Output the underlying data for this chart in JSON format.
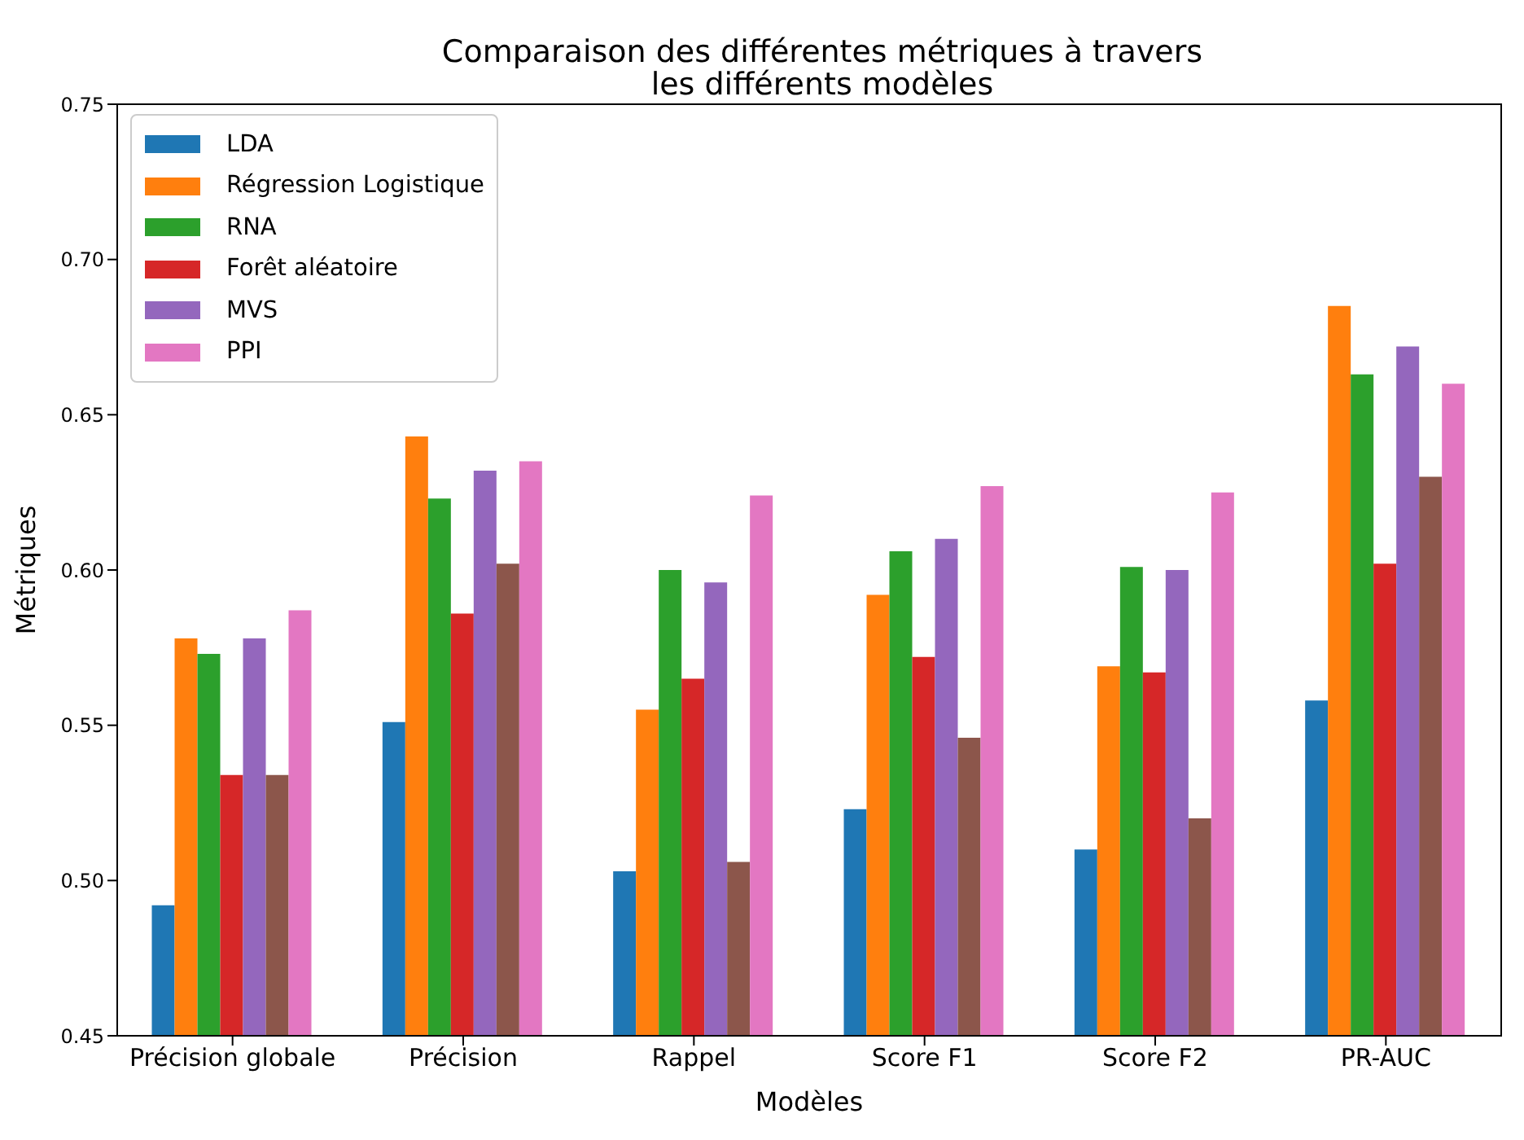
{
  "chart_data": {
    "type": "bar",
    "title": "Comparaison des différentes métriques à travers\nles différents modèles",
    "xlabel": "Modèles",
    "ylabel": "Métriques",
    "categories": [
      "Précision globale",
      "Précision",
      "Rappel",
      "Score F1",
      "Score F2",
      "PR-AUC"
    ],
    "series": [
      {
        "name": "LDA",
        "color": "#1f77b4",
        "values": [
          0.492,
          0.551,
          0.503,
          0.523,
          0.51,
          0.558
        ]
      },
      {
        "name": "Régression Logistique",
        "color": "#ff7f0e",
        "values": [
          0.578,
          0.643,
          0.555,
          0.592,
          0.569,
          0.685
        ]
      },
      {
        "name": "RNA",
        "color": "#2ca02c",
        "values": [
          0.573,
          0.623,
          0.6,
          0.606,
          0.601,
          0.663
        ]
      },
      {
        "name": "Forêt aléatoire",
        "color": "#d62728",
        "values": [
          0.534,
          0.586,
          0.565,
          0.572,
          0.567,
          0.602
        ]
      },
      {
        "name": "MVS",
        "color": "#9467bd",
        "values": [
          0.578,
          0.632,
          0.596,
          0.61,
          0.6,
          0.672
        ]
      },
      {
        "color": "#8c564b",
        "values": [
          0.534,
          0.602,
          0.506,
          0.546,
          0.52,
          0.63
        ]
      },
      {
        "name": "PPI",
        "color": "#e377c2",
        "values": [
          0.587,
          0.635,
          0.624,
          0.627,
          0.625,
          0.66
        ]
      }
    ],
    "ylim": [
      0.45,
      0.75
    ],
    "yticks": [
      {
        "value": 0.45,
        "label": "0.45"
      },
      {
        "value": 0.5,
        "label": "0.50"
      },
      {
        "value": 0.55,
        "label": "0.55"
      },
      {
        "value": 0.6,
        "label": "0.60"
      },
      {
        "value": 0.65,
        "label": "0.65"
      },
      {
        "value": 0.7,
        "label": "0.70"
      },
      {
        "value": 0.75,
        "label": "0.75"
      }
    ],
    "grid": false,
    "legend": "top left"
  }
}
